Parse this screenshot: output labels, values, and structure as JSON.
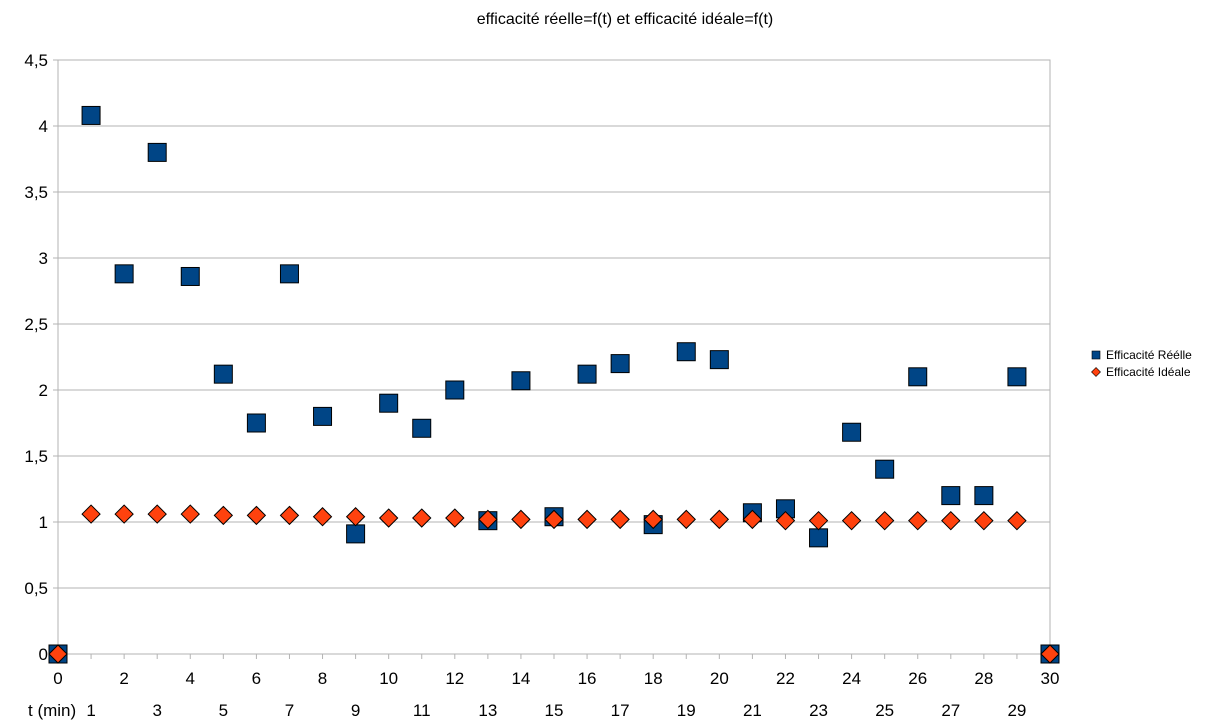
{
  "chart_data": {
    "type": "scatter",
    "title": "efficacité réelle=f(t) et efficacité idéale=f(t)",
    "xlabel": "t (min)",
    "ylabel": "",
    "xlim": [
      0,
      30
    ],
    "ylim": [
      0,
      4.5
    ],
    "grid": "horizontal",
    "legend_position": "right",
    "x_ticks_top": [
      "0",
      "2",
      "4",
      "6",
      "8",
      "10",
      "12",
      "14",
      "16",
      "18",
      "20",
      "22",
      "24",
      "26",
      "28",
      "30"
    ],
    "x_ticks_bottom": [
      "1",
      "3",
      "5",
      "7",
      "9",
      "11",
      "13",
      "15",
      "17",
      "19",
      "21",
      "23",
      "25",
      "27",
      "29"
    ],
    "y_ticks": [
      "0",
      "0,5",
      "1",
      "1,5",
      "2",
      "2,5",
      "3",
      "3,5",
      "4",
      "4,5"
    ],
    "y_tick_values": [
      0,
      0.5,
      1,
      1.5,
      2,
      2.5,
      3,
      3.5,
      4,
      4.5
    ],
    "series": [
      {
        "name": "Efficacité Réélle",
        "marker": "square",
        "color": "#004586",
        "points": [
          [
            0,
            0
          ],
          [
            1,
            4.08
          ],
          [
            2,
            2.88
          ],
          [
            3,
            3.8
          ],
          [
            4,
            2.86
          ],
          [
            5,
            2.12
          ],
          [
            6,
            1.75
          ],
          [
            7,
            2.88
          ],
          [
            8,
            1.8
          ],
          [
            9,
            0.91
          ],
          [
            10,
            1.9
          ],
          [
            11,
            1.71
          ],
          [
            12,
            2.0
          ],
          [
            13,
            1.01
          ],
          [
            14,
            2.07
          ],
          [
            15,
            1.04
          ],
          [
            16,
            2.12
          ],
          [
            17,
            2.2
          ],
          [
            18,
            0.98
          ],
          [
            19,
            2.29
          ],
          [
            20,
            2.23
          ],
          [
            21,
            1.07
          ],
          [
            22,
            1.1
          ],
          [
            23,
            0.88
          ],
          [
            24,
            1.68
          ],
          [
            25,
            1.4
          ],
          [
            26,
            2.1
          ],
          [
            27,
            1.2
          ],
          [
            28,
            1.2
          ],
          [
            29,
            2.1
          ],
          [
            30,
            0
          ]
        ]
      },
      {
        "name": "Efficacité Idéale",
        "marker": "diamond",
        "color": "#ff420e",
        "points": [
          [
            0,
            0
          ],
          [
            1,
            1.06
          ],
          [
            2,
            1.06
          ],
          [
            3,
            1.06
          ],
          [
            4,
            1.06
          ],
          [
            5,
            1.05
          ],
          [
            6,
            1.05
          ],
          [
            7,
            1.05
          ],
          [
            8,
            1.04
          ],
          [
            9,
            1.04
          ],
          [
            10,
            1.03
          ],
          [
            11,
            1.03
          ],
          [
            12,
            1.03
          ],
          [
            13,
            1.02
          ],
          [
            14,
            1.02
          ],
          [
            15,
            1.02
          ],
          [
            16,
            1.02
          ],
          [
            17,
            1.02
          ],
          [
            18,
            1.02
          ],
          [
            19,
            1.02
          ],
          [
            20,
            1.02
          ],
          [
            21,
            1.02
          ],
          [
            22,
            1.01
          ],
          [
            23,
            1.01
          ],
          [
            24,
            1.01
          ],
          [
            25,
            1.01
          ],
          [
            26,
            1.01
          ],
          [
            27,
            1.01
          ],
          [
            28,
            1.01
          ],
          [
            29,
            1.01
          ],
          [
            30,
            0
          ]
        ]
      }
    ]
  }
}
